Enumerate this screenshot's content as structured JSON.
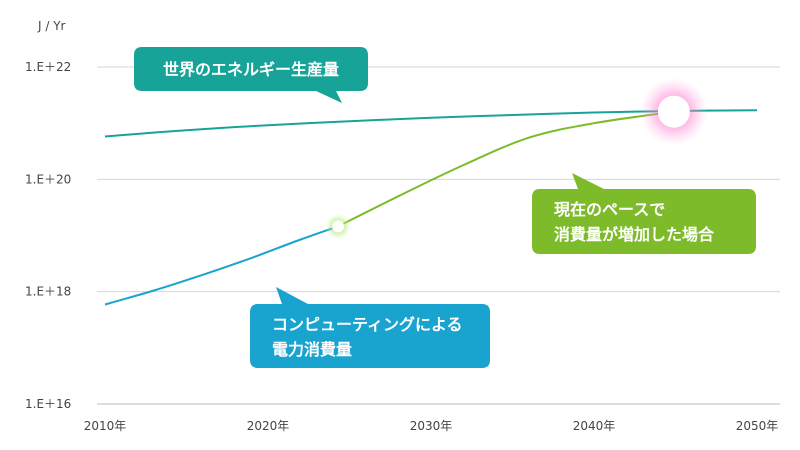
{
  "chart_data": {
    "type": "line",
    "ylabel": "J / Yr",
    "yscale": "log",
    "ylim": [
      1e+16,
      1e+22
    ],
    "yticks": [
      {
        "value": 1e+22,
        "label": "1.E＋22"
      },
      {
        "value": 1e+20,
        "label": "1.E＋20"
      },
      {
        "value": 1e+18,
        "label": "1.E＋18"
      },
      {
        "value": 1e+16,
        "label": "1.E＋16"
      }
    ],
    "xlim": [
      2010,
      2050
    ],
    "xticks": [
      {
        "value": 2010,
        "label": "2010年"
      },
      {
        "value": 2020,
        "label": "2020年"
      },
      {
        "value": 2030,
        "label": "2030年"
      },
      {
        "value": 2040,
        "label": "2040年"
      },
      {
        "value": 2050,
        "label": "2050年"
      }
    ],
    "grid": true,
    "series": [
      {
        "name": "世界のエネルギー生産量",
        "color": "#17a398",
        "x": [
          2010,
          2015,
          2020,
          2025,
          2030,
          2035,
          2040,
          2045,
          2050
        ],
        "y": [
          5.8e+20,
          7.5e+20,
          9.2e+20,
          1.08e+21,
          1.25e+21,
          1.4e+21,
          1.55e+21,
          1.65e+21,
          1.7e+21
        ]
      },
      {
        "name": "コンピューティングによる電力消費量",
        "color": "#19a3cf",
        "x": [
          2010,
          2013,
          2016,
          2019,
          2022,
          2024.3
        ],
        "y": [
          5.9e+17,
          1.05e+18,
          2e+18,
          4e+18,
          8.5e+18,
          1.45e+19
        ]
      },
      {
        "name": "現在のペースで消費量が増加した場合",
        "color": "#7dbb2a",
        "x": [
          2024.3,
          2028,
          2032,
          2036,
          2040,
          2044.9
        ],
        "y": [
          1.45e+19,
          5e+19,
          1.8e+20,
          5.5e+20,
          1e+21,
          1.6e+21
        ]
      }
    ],
    "markers": [
      {
        "x": 2024.3,
        "y": 1.45e+19,
        "style": "green-glow"
      },
      {
        "x": 2044.9,
        "y": 1.6e+21,
        "style": "pink-glow"
      }
    ],
    "annotations": [
      {
        "lines": [
          "世界のエネルギー生産量"
        ],
        "color": "#17a398"
      },
      {
        "lines": [
          "現在のペースで",
          "消費量が増加した場合"
        ],
        "color": "#7dbb2a"
      },
      {
        "lines": [
          "コンピューティングによる",
          "電力消費量"
        ],
        "color": "#19a3cf"
      }
    ]
  }
}
